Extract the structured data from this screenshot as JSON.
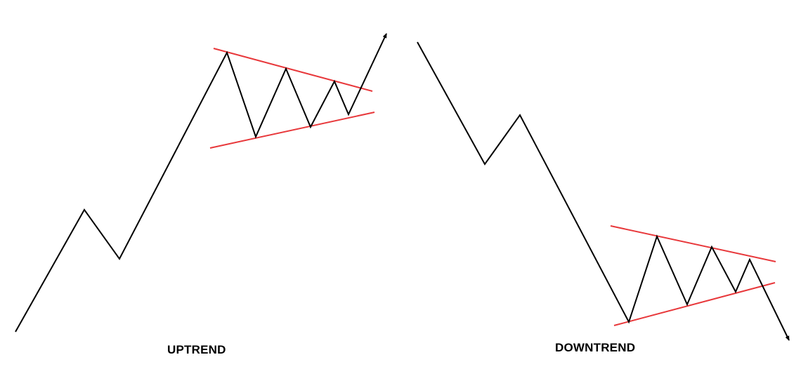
{
  "colors": {
    "background": "#ffffff",
    "price_line": "#000000",
    "trendline": "#e8383b"
  },
  "patterns": [
    {
      "id": "uptrend",
      "caption": "UPTREND",
      "breakout_direction": "up"
    },
    {
      "id": "downtrend",
      "caption": "DOWNTREND",
      "breakout_direction": "down"
    }
  ]
}
